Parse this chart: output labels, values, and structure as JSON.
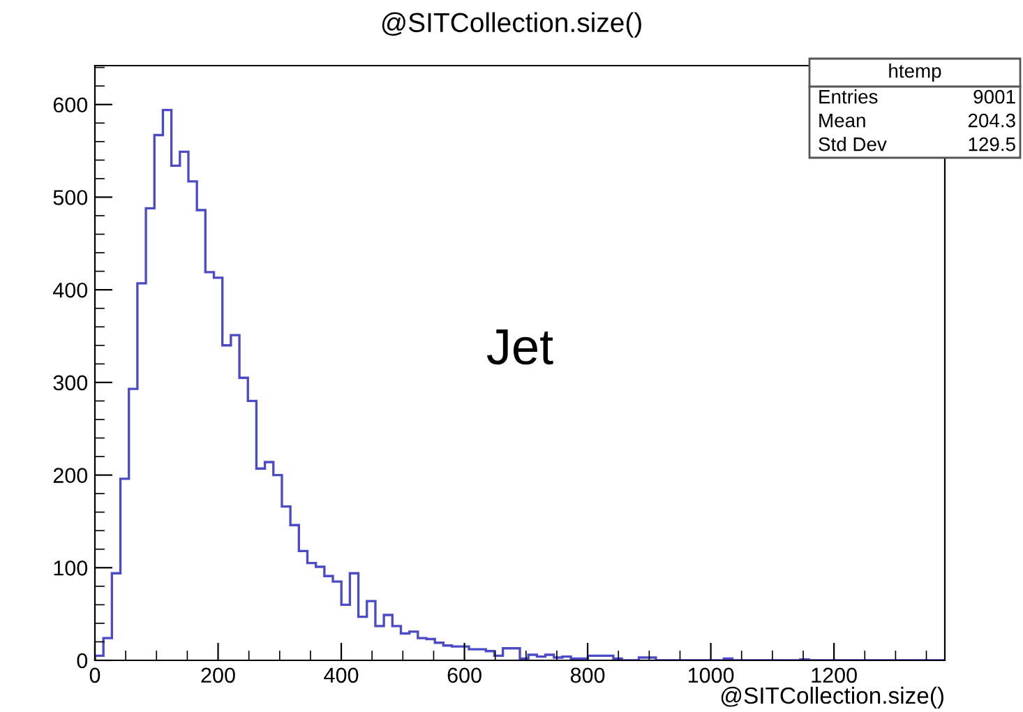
{
  "chart_data": {
    "type": "histogram",
    "title": "@SITCollection.size()",
    "xlabel": "@SITCollection.size()",
    "annotations": [
      "Jet",
      "htemp",
      "Entries",
      "9001",
      "Mean",
      "204.3",
      "Std Dev",
      "129.5"
    ],
    "color": "#4b4bc8",
    "bins": [
      0,
      13.8,
      27.6,
      41.4,
      55.2,
      69,
      82.8,
      96.6,
      110.4,
      124.2,
      138,
      151.8,
      165.6,
      179.4,
      193.2,
      207,
      220.8,
      234.6,
      248.4,
      262.2,
      276,
      289.8,
      303.6,
      317.4,
      331.2,
      345,
      358.8,
      372.6,
      386.4,
      400.2,
      414,
      427.8,
      441.6,
      455.4,
      469.2,
      483,
      496.8,
      510.6,
      524.4,
      538.2,
      552,
      565.8,
      579.6,
      593.4,
      607.2,
      621,
      634.8,
      648.6,
      662.4,
      676.2,
      690,
      703.8,
      717.6,
      731.4,
      745.2,
      759,
      772.8,
      786.6,
      800.4,
      814.2,
      828,
      841.8,
      855.6,
      869.4,
      883.2,
      897,
      910.8,
      924.6,
      938.4,
      952.2,
      966,
      979.8,
      993.6,
      1007.4,
      1021.2,
      1035,
      1048.8,
      1062.6,
      1076.4,
      1090.2,
      1104,
      1117.8,
      1131.6,
      1145.4,
      1159.2,
      1173,
      1186.8,
      1200.6,
      1214.4,
      1228.2,
      1242,
      1255.8,
      1269.6,
      1283.4,
      1297.2,
      1311,
      1324.8,
      1338.6,
      1352.4,
      1366.2,
      1380
    ],
    "values": [
      5,
      24,
      94,
      196,
      293,
      407,
      488,
      567,
      594,
      534,
      549,
      517,
      486,
      419,
      413,
      340,
      351,
      305,
      280,
      207,
      214,
      200,
      166,
      146,
      118,
      105,
      101,
      91,
      85,
      60,
      94,
      47,
      64,
      37,
      49,
      37,
      29,
      31,
      24,
      23,
      19,
      16,
      15,
      15,
      12,
      12,
      10,
      5,
      13,
      13,
      2,
      6,
      4,
      6,
      3,
      4,
      2,
      2,
      5,
      5,
      5,
      2,
      0,
      0,
      3,
      3,
      0,
      0,
      0,
      0,
      0,
      0,
      0,
      0,
      2,
      0,
      0,
      0,
      0,
      0,
      0,
      0,
      0,
      1,
      0,
      0,
      0,
      0,
      0,
      0,
      0,
      0,
      0,
      0,
      0,
      0,
      0,
      0,
      0,
      0
    ],
    "xlim": [
      0,
      1380
    ],
    "ylim": [
      0,
      642
    ],
    "xticks": [
      0,
      200,
      400,
      600,
      800,
      1000,
      1200
    ],
    "yticks": [
      0,
      100,
      200,
      300,
      400,
      500,
      600
    ],
    "grid": false
  }
}
